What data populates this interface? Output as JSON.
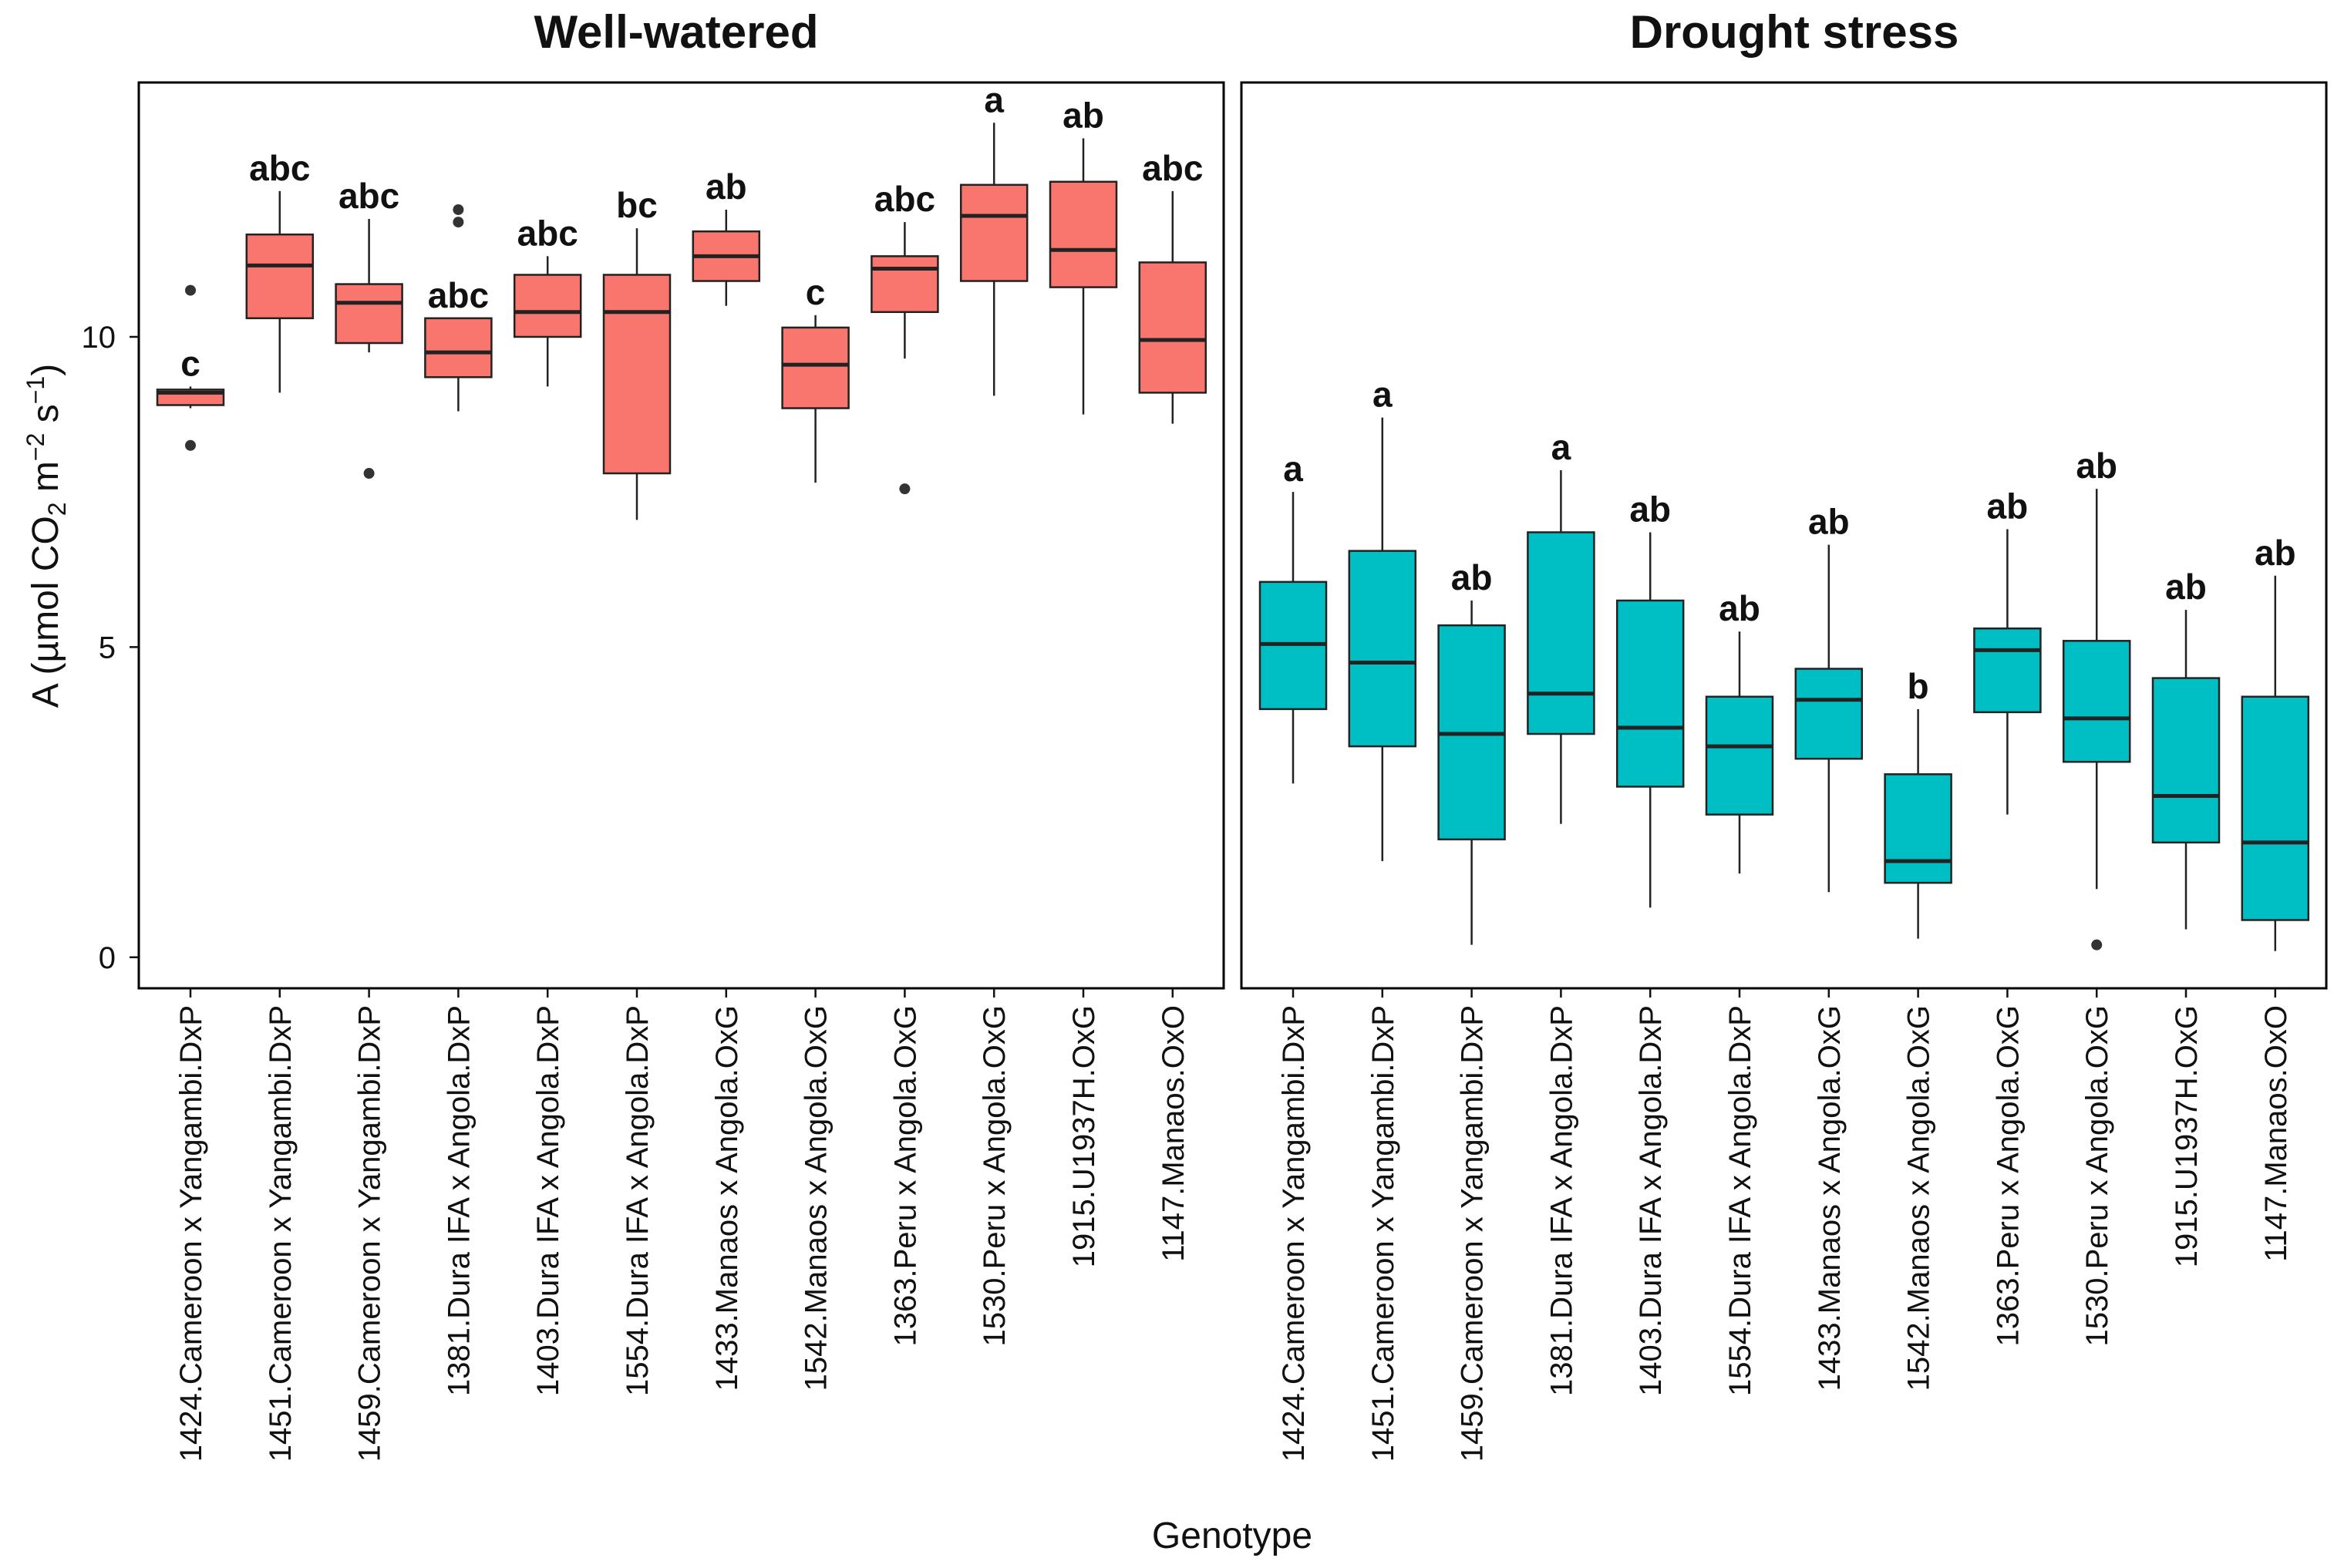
{
  "chart_data": {
    "type": "boxplot",
    "y_label": "A (µmol CO₂ m⁻² s⁻¹)",
    "y_label_parts": {
      "lead": "A (µmol CO",
      "sub2": "2",
      "m": " m",
      "supm2": "−2",
      "s": " s",
      "supm1": "−1",
      "close": ")"
    },
    "x_label": "Genotype",
    "ylim": [
      -0.5,
      14.1
    ],
    "y_ticks": [
      0,
      5,
      10
    ],
    "panels": [
      {
        "title": "Well-watered",
        "color": "#F8766D",
        "categories": [
          "1424.Cameroon x Yangambi.DxP",
          "1451.Cameroon x Yangambi.DxP",
          "1459.Cameroon x Yangambi.DxP",
          "1381.Dura IFA x Angola.DxP",
          "1403.Dura IFA x Angola.DxP",
          "1554.Dura IFA x Angola.DxP",
          "1433.Manaos x Angola.OxG",
          "1542.Manaos x Angola.OxG",
          "1363.Peru x Angola.OxG",
          "1530.Peru x Angola.OxG",
          "1915.U1937H.OxG",
          "1147.Manaos.OxO"
        ],
        "boxes": [
          {
            "min": 8.85,
            "q1": 8.9,
            "median": 9.1,
            "q3": 9.15,
            "max": 9.2,
            "outliers": [
              10.75,
              8.25
            ],
            "sig": "c"
          },
          {
            "min": 9.1,
            "q1": 10.3,
            "median": 11.15,
            "q3": 11.65,
            "max": 12.35,
            "outliers": [],
            "sig": "abc"
          },
          {
            "min": 9.75,
            "q1": 9.9,
            "median": 10.55,
            "q3": 10.85,
            "max": 11.9,
            "outliers": [
              7.8
            ],
            "sig": "abc"
          },
          {
            "min": 8.8,
            "q1": 9.35,
            "median": 9.75,
            "q3": 10.3,
            "max": 10.3,
            "outliers": [
              12.05,
              11.85
            ],
            "sig": "abc"
          },
          {
            "min": 9.2,
            "q1": 10.0,
            "median": 10.4,
            "q3": 11.0,
            "max": 11.3,
            "outliers": [],
            "sig": "abc"
          },
          {
            "min": 7.05,
            "q1": 7.8,
            "median": 10.4,
            "q3": 11.0,
            "max": 11.75,
            "outliers": [],
            "sig": "bc"
          },
          {
            "min": 10.5,
            "q1": 10.9,
            "median": 11.3,
            "q3": 11.7,
            "max": 12.05,
            "outliers": [],
            "sig": "ab"
          },
          {
            "min": 7.65,
            "q1": 8.85,
            "median": 9.55,
            "q3": 10.15,
            "max": 10.35,
            "outliers": [],
            "sig": "c"
          },
          {
            "min": 9.65,
            "q1": 10.4,
            "median": 11.1,
            "q3": 11.3,
            "max": 11.85,
            "outliers": [
              7.55
            ],
            "sig": "abc"
          },
          {
            "min": 9.05,
            "q1": 10.9,
            "median": 11.95,
            "q3": 12.45,
            "max": 13.45,
            "outliers": [],
            "sig": "a"
          },
          {
            "min": 8.75,
            "q1": 10.8,
            "median": 11.4,
            "q3": 12.5,
            "max": 13.2,
            "outliers": [],
            "sig": "ab"
          },
          {
            "min": 8.6,
            "q1": 9.1,
            "median": 9.95,
            "q3": 11.2,
            "max": 12.35,
            "outliers": [],
            "sig": "abc"
          }
        ]
      },
      {
        "title": "Drought stress",
        "color": "#00BFC4",
        "categories": [
          "1424.Cameroon x Yangambi.DxP",
          "1451.Cameroon x Yangambi.DxP",
          "1459.Cameroon x Yangambi.DxP",
          "1381.Dura IFA x Angola.DxP",
          "1403.Dura IFA x Angola.DxP",
          "1554.Dura IFA x Angola.DxP",
          "1433.Manaos x Angola.OxG",
          "1542.Manaos x Angola.OxG",
          "1363.Peru x Angola.OxG",
          "1530.Peru x Angola.OxG",
          "1915.U1937H.OxG",
          "1147.Manaos.OxO"
        ],
        "boxes": [
          {
            "min": 2.8,
            "q1": 4.0,
            "median": 5.05,
            "q3": 6.05,
            "max": 7.5,
            "outliers": [],
            "sig": "a"
          },
          {
            "min": 1.55,
            "q1": 3.4,
            "median": 4.75,
            "q3": 6.55,
            "max": 8.7,
            "outliers": [],
            "sig": "a"
          },
          {
            "min": 0.2,
            "q1": 1.9,
            "median": 3.6,
            "q3": 5.35,
            "max": 5.75,
            "outliers": [],
            "sig": "ab"
          },
          {
            "min": 2.15,
            "q1": 3.6,
            "median": 4.25,
            "q3": 6.85,
            "max": 7.85,
            "outliers": [],
            "sig": "a"
          },
          {
            "min": 0.8,
            "q1": 2.75,
            "median": 3.7,
            "q3": 5.75,
            "max": 6.85,
            "outliers": [],
            "sig": "ab"
          },
          {
            "min": 1.35,
            "q1": 2.3,
            "median": 3.4,
            "q3": 4.2,
            "max": 5.25,
            "outliers": [],
            "sig": "ab"
          },
          {
            "min": 1.05,
            "q1": 3.2,
            "median": 4.15,
            "q3": 4.65,
            "max": 6.65,
            "outliers": [],
            "sig": "ab"
          },
          {
            "min": 0.3,
            "q1": 1.2,
            "median": 1.55,
            "q3": 2.95,
            "max": 4.0,
            "outliers": [],
            "sig": "b"
          },
          {
            "min": 2.3,
            "q1": 3.95,
            "median": 4.95,
            "q3": 5.3,
            "max": 6.9,
            "outliers": [],
            "sig": "ab"
          },
          {
            "min": 1.1,
            "q1": 3.15,
            "median": 3.85,
            "q3": 5.1,
            "max": 7.55,
            "outliers": [
              0.2
            ],
            "sig": "ab"
          },
          {
            "min": 0.45,
            "q1": 1.85,
            "median": 2.6,
            "q3": 4.5,
            "max": 5.6,
            "outliers": [],
            "sig": "ab"
          },
          {
            "min": 0.1,
            "q1": 0.6,
            "median": 1.85,
            "q3": 4.2,
            "max": 6.15,
            "outliers": [],
            "sig": "ab"
          }
        ]
      }
    ]
  }
}
